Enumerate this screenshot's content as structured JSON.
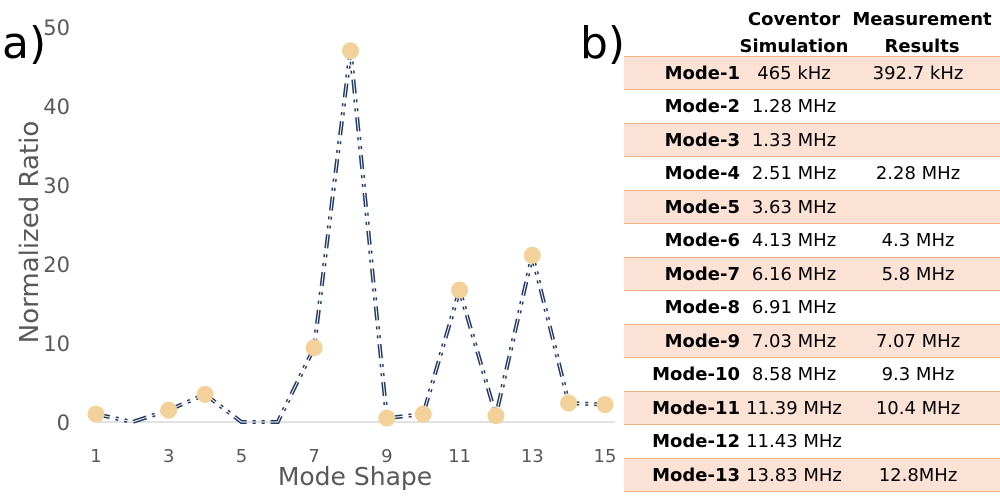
{
  "panel_labels": {
    "a": "a)",
    "b": "b)"
  },
  "chart_data": {
    "type": "line",
    "xlabel": "Mode Shape",
    "ylabel": "Normalized Ratio",
    "x": [
      1,
      2,
      3,
      4,
      5,
      6,
      7,
      8,
      9,
      10,
      11,
      12,
      13,
      14,
      15
    ],
    "values": [
      1.0,
      0,
      1.5,
      3.5,
      0,
      0,
      9.4,
      47,
      0.5,
      1.0,
      16.7,
      0.8,
      21.1,
      2.4,
      2.2
    ],
    "markers_shown": [
      true,
      false,
      true,
      true,
      false,
      false,
      true,
      true,
      true,
      true,
      true,
      true,
      true,
      true,
      true
    ],
    "xlim": [
      1,
      15
    ],
    "ylim": [
      0,
      50
    ],
    "x_ticks": [
      "1",
      "3",
      "5",
      "7",
      "9",
      "11",
      "13",
      "15"
    ],
    "y_ticks": [
      "0",
      "10",
      "20",
      "30",
      "40",
      "50"
    ],
    "grid": false,
    "line_style": "dash-dot-dot",
    "colors": {
      "line": "#1f3864",
      "marker": "#f2d29a",
      "axis": "#d9d9d9",
      "tick_text": "#595959"
    }
  },
  "table": {
    "headers": [
      {
        "line1": "Coventor",
        "line2": "Simulation"
      },
      {
        "line1": "Measurement",
        "line2": "Results"
      }
    ],
    "rows": [
      {
        "mode": "Mode-1",
        "sim": "465 kHz",
        "meas": "392.7 kHz"
      },
      {
        "mode": "Mode-2",
        "sim": "1.28 MHz",
        "meas": ""
      },
      {
        "mode": "Mode-3",
        "sim": "1.33 MHz",
        "meas": ""
      },
      {
        "mode": "Mode-4",
        "sim": "2.51 MHz",
        "meas": "2.28 MHz"
      },
      {
        "mode": "Mode-5",
        "sim": "3.63 MHz",
        "meas": ""
      },
      {
        "mode": "Mode-6",
        "sim": "4.13 MHz",
        "meas": "4.3 MHz"
      },
      {
        "mode": "Mode-7",
        "sim": "6.16 MHz",
        "meas": "5.8 MHz"
      },
      {
        "mode": "Mode-8",
        "sim": "6.91 MHz",
        "meas": ""
      },
      {
        "mode": "Mode-9",
        "sim": "7.03 MHz",
        "meas": "7.07 MHz"
      },
      {
        "mode": "Mode-10",
        "sim": "8.58 MHz",
        "meas": "9.3 MHz"
      },
      {
        "mode": "Mode-11",
        "sim": "11.39 MHz",
        "meas": "10.4 MHz"
      },
      {
        "mode": "Mode-12",
        "sim": "11.43 MHz",
        "meas": ""
      },
      {
        "mode": "Mode-13",
        "sim": "13.83 MHz",
        "meas": "12.8MHz"
      }
    ],
    "colors": {
      "band": "#fbe2d5",
      "border": "#f4b183"
    }
  }
}
